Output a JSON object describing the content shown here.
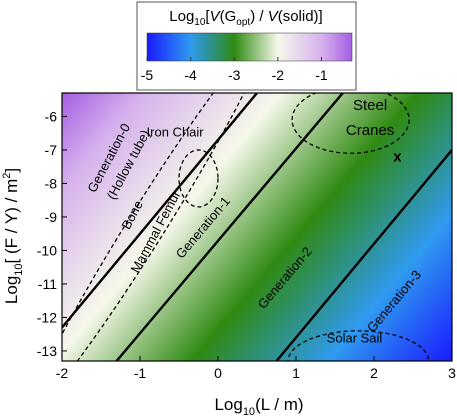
{
  "chart_data": {
    "type": "heatmap",
    "colorbar": {
      "title_prefix": "Log",
      "title_sub": "10",
      "title_mid": "[",
      "title_v1": "V",
      "title_g": "(G",
      "title_gsub": "opt",
      "title_g_close": ") / ",
      "title_v2": "V",
      "title_end": "(solid)]",
      "range": [
        -5,
        -0.3
      ],
      "ticks": [
        -5,
        -4,
        -3,
        -2,
        -1
      ],
      "tick_labels": [
        "-5",
        "-4",
        "-3",
        "-2",
        "-1"
      ],
      "colors": [
        {
          "value": -5.0,
          "color": "#1a1aff"
        },
        {
          "value": -4.0,
          "color": "#2f9af0"
        },
        {
          "value": -3.0,
          "color": "#2f8a12"
        },
        {
          "value": -2.0,
          "color": "#f6f8ea"
        },
        {
          "value": -1.0,
          "color": "#d6b2ec"
        },
        {
          "value": -0.3,
          "color": "#a55ee3"
        }
      ]
    },
    "xlabel_prefix": "Log",
    "xlabel_sub": "10",
    "xlabel_rest": "(L / m)",
    "ylabel_prefix": "Log",
    "ylabel_sub": "10",
    "ylabel_rest": "[ (F / Y) / m",
    "ylabel_sup": "2",
    "ylabel_close": "]",
    "xlim": [
      -2,
      3
    ],
    "ylim": [
      -13.3,
      -5.3
    ],
    "xticks": [
      -2,
      -1,
      0,
      1,
      2,
      3
    ],
    "xtick_labels": [
      "-2",
      "-1",
      "0",
      "1",
      "2",
      "3"
    ],
    "yticks": [
      -6,
      -7,
      -8,
      -9,
      -10,
      -11,
      -12,
      -13
    ],
    "ytick_labels": [
      "-6",
      "-7",
      "-8",
      "-9",
      "-10",
      "-11",
      "-12",
      "-13"
    ],
    "boundaries": [
      {
        "name": "gen0-gen1",
        "points": [
          [
            -2,
            -12.3
          ],
          [
            0.5,
            -5.3
          ]
        ]
      },
      {
        "name": "gen1-gen2",
        "points": [
          [
            -1.3,
            -13.3
          ],
          [
            1.6,
            -5.3
          ]
        ]
      },
      {
        "name": "gen2-gen3",
        "points": [
          [
            0.75,
            -13.3
          ],
          [
            3,
            -7.0
          ]
        ]
      }
    ],
    "regions": [
      {
        "label": "Generation-0",
        "x": -1.35,
        "y": -7.3,
        "rotate": -62
      },
      {
        "label": "(Hollow tube)",
        "x": -1.1,
        "y": -7.5,
        "rotate": -62
      },
      {
        "label": "Generation-1",
        "x": -0.15,
        "y": -9.4,
        "rotate": -50
      },
      {
        "label": "Generation-2",
        "x": 0.9,
        "y": -10.9,
        "rotate": -50
      },
      {
        "label": "Generation-3",
        "x": 2.3,
        "y": -11.6,
        "rotate": -50
      }
    ],
    "application_regions": [
      {
        "label": "Iron Chair",
        "center": [
          -0.25,
          -7.85
        ],
        "rx": 0.25,
        "ry": 0.85,
        "rotate": 0
      },
      {
        "label": "Bone",
        "label2": "Mammal Femur",
        "center": [
          -0.9,
          -9.2
        ],
        "rx": 2.8,
        "ry": 0.55,
        "rotate": -58
      },
      {
        "label": "Steel",
        "label2": "Cranes",
        "center": [
          1.7,
          -6.1
        ],
        "rx": 0.75,
        "ry": 1.0,
        "rotate": 0
      },
      {
        "label": "Solar Sail",
        "center": [
          1.8,
          -13.3
        ],
        "rx": 0.9,
        "ry": 0.9,
        "rotate": 0
      }
    ],
    "marker": {
      "label": "x",
      "x": 2.3,
      "y": -7.2
    }
  }
}
